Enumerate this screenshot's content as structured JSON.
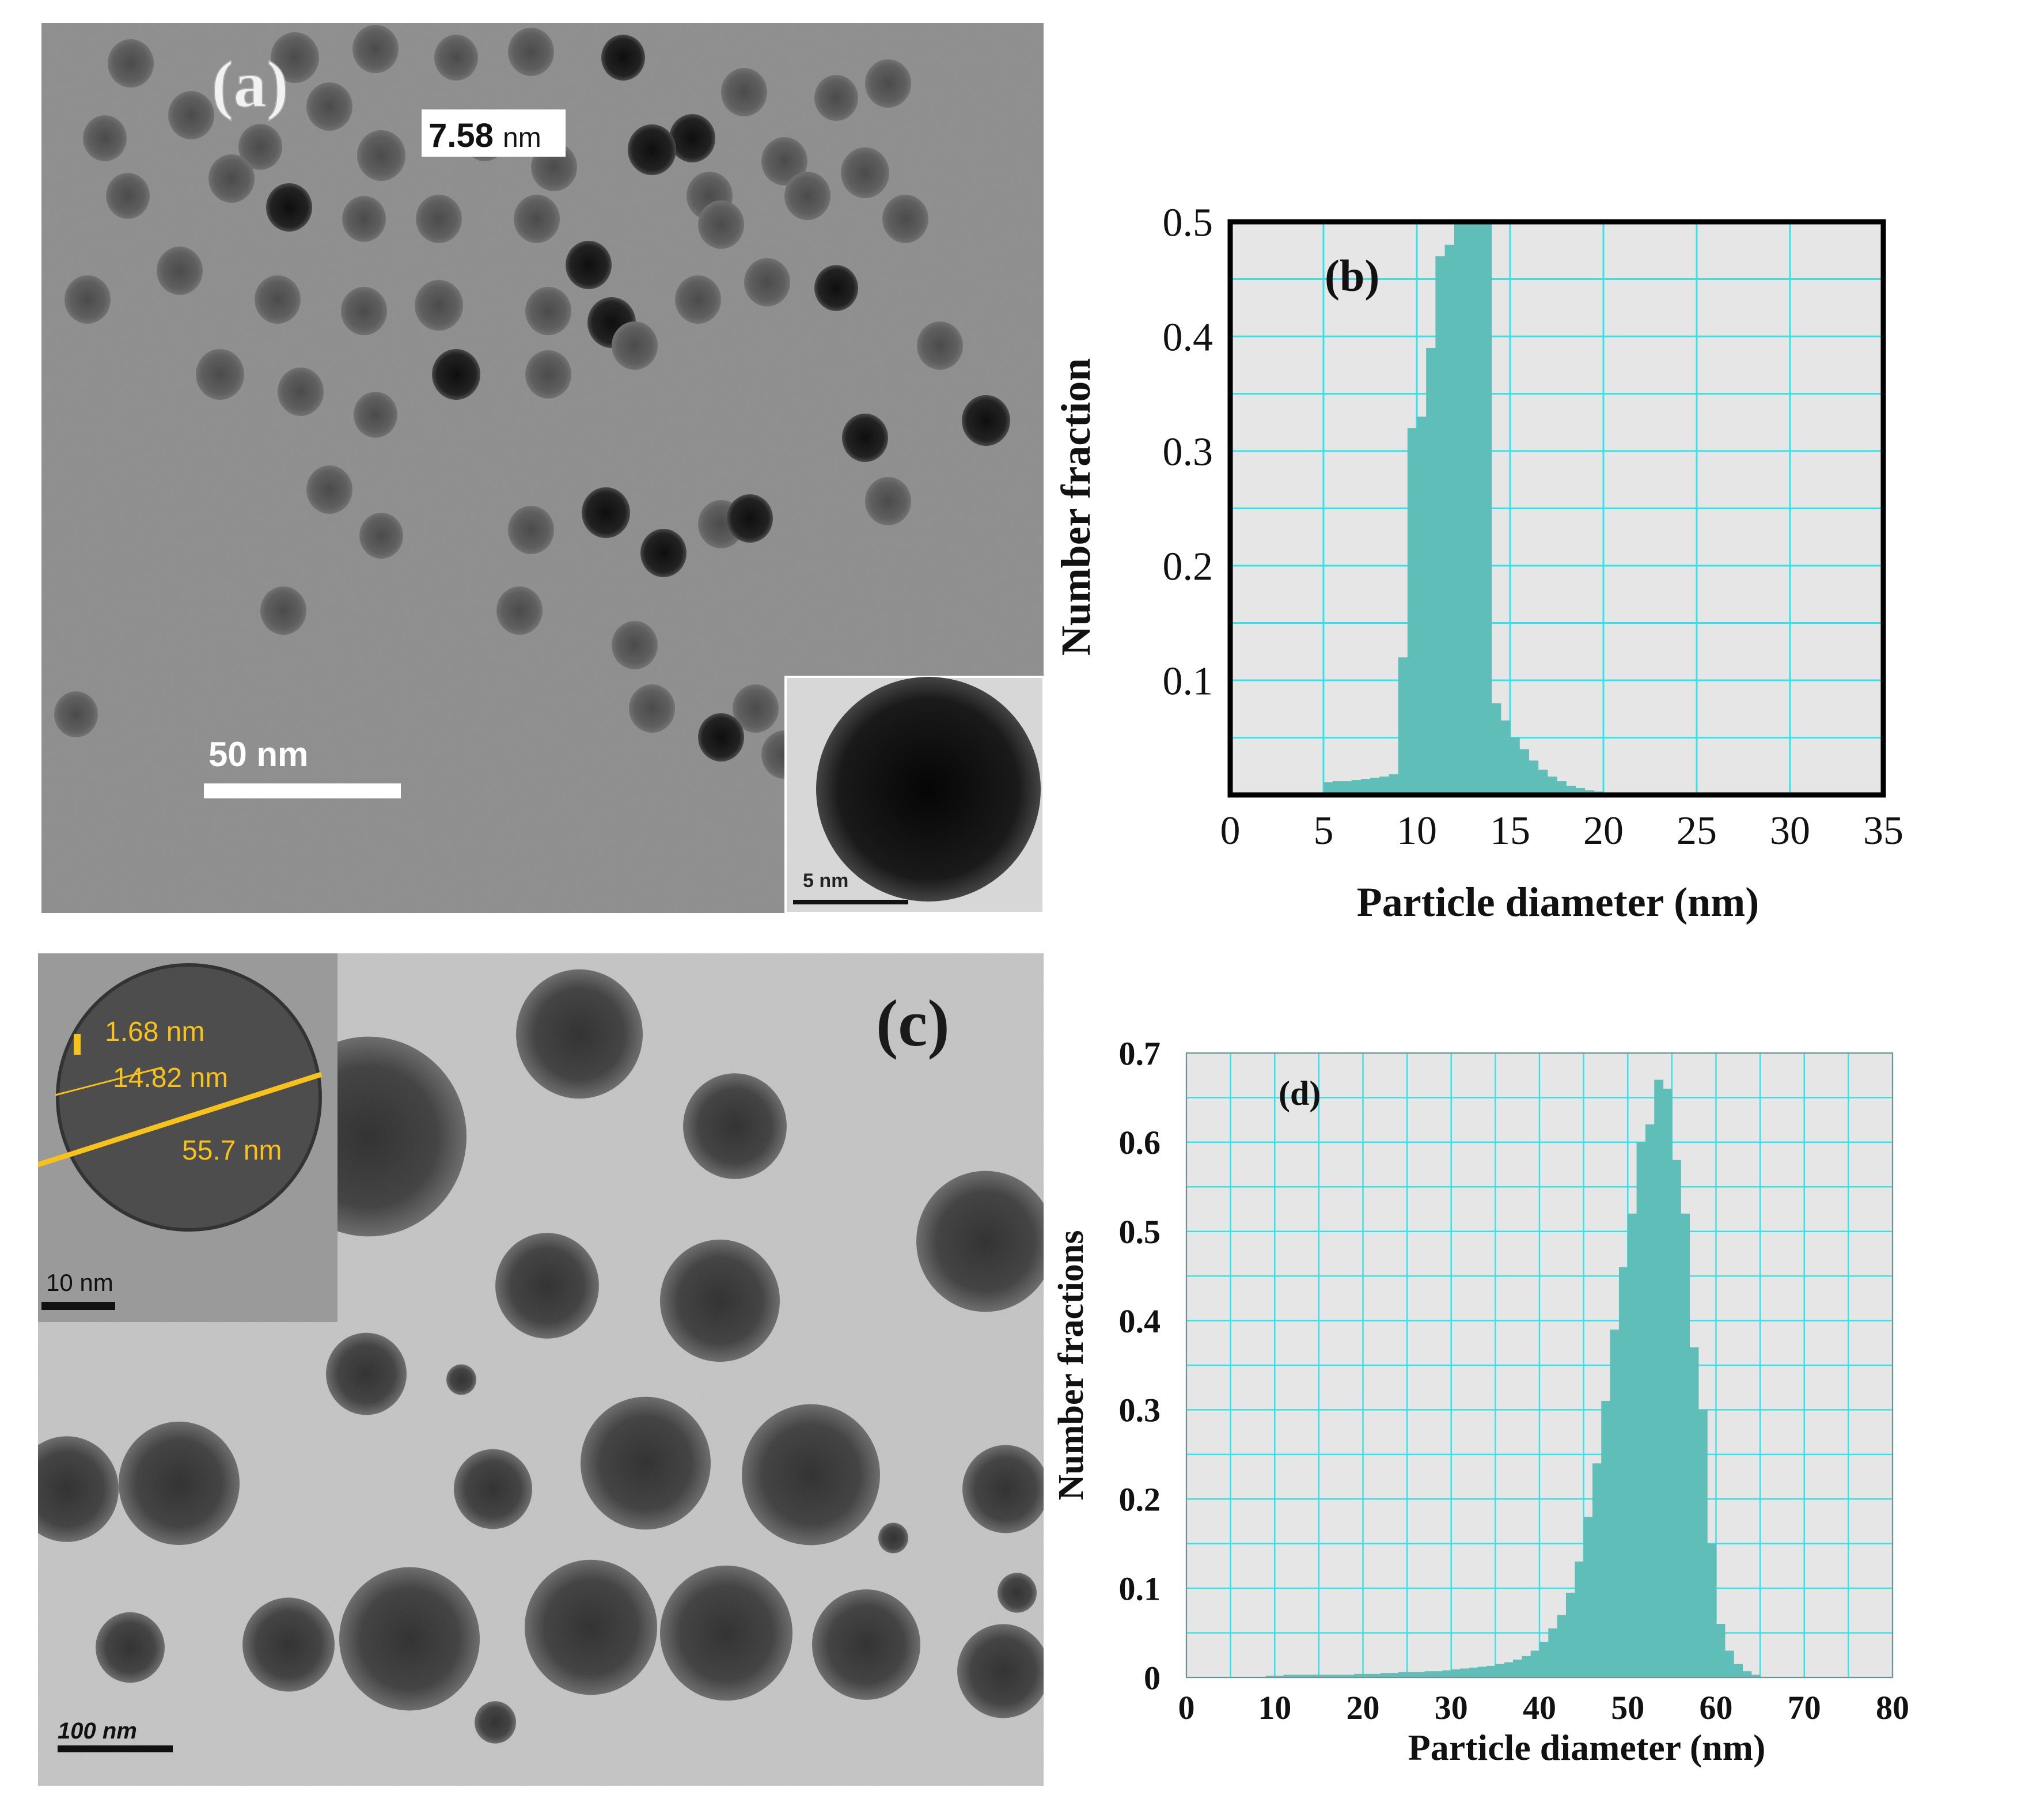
{
  "panel_a": {
    "label": "(a)",
    "measurement_value": "7.58",
    "measurement_unit": "nm",
    "scale_bar": "50 nm",
    "inset_scale_bar": "5 nm"
  },
  "panel_c": {
    "label": "(c)",
    "measurements": [
      "1.68 nm",
      "14.82 nm",
      "55.7 nm"
    ],
    "inset_scale_bar": "10 nm",
    "scale_bar": "100 nm"
  },
  "colors": {
    "bar_fill": "#5fbfb8",
    "plot_bg": "#e6e6e6",
    "grid": "#33e3e8",
    "tem_bg_a": "#8d8d8d",
    "tem_bg_c": "#c4c4c4",
    "measure_line": "#f7c21b"
  },
  "chart_data": [
    {
      "type": "bar",
      "panel_label": "(b)",
      "xlabel": "Particle diameter (nm)",
      "ylabel": "Number fraction",
      "xlim": [
        0,
        35
      ],
      "ylim": [
        0,
        0.5
      ],
      "x_ticks": [
        "0",
        "5",
        "10",
        "15",
        "20",
        "25",
        "30",
        "35"
      ],
      "y_ticks": [
        "0.1",
        "0.2",
        "0.3",
        "0.4",
        "0.5"
      ],
      "grid": true,
      "bin_width": 0.5,
      "x": [
        5.5,
        6,
        6.5,
        7,
        7.5,
        8,
        8.5,
        9,
        9.5,
        10,
        10.5,
        11,
        11.5,
        12,
        12.5,
        13,
        13.5,
        14,
        14.5,
        15,
        15.5,
        16,
        16.5,
        17,
        17.5,
        18,
        18.5,
        19,
        19.5,
        20,
        20.5
      ],
      "values": [
        0.011,
        0.012,
        0.012,
        0.013,
        0.014,
        0.015,
        0.016,
        0.018,
        0.12,
        0.32,
        0.33,
        0.39,
        0.47,
        0.48,
        0.5,
        0.5,
        0.5,
        0.5,
        0.08,
        0.065,
        0.05,
        0.04,
        0.03,
        0.022,
        0.016,
        0.012,
        0.008,
        0.006,
        0.004,
        0.003,
        0.002
      ]
    },
    {
      "type": "bar",
      "panel_label": "(d)",
      "xlabel": "Particle diameter (nm)",
      "ylabel": "Number fractions",
      "xlim": [
        0,
        80
      ],
      "ylim": [
        0,
        0.7
      ],
      "x_ticks": [
        "0",
        "10",
        "20",
        "30",
        "40",
        "50",
        "60",
        "70",
        "80"
      ],
      "y_ticks": [
        "0",
        "0.1",
        "0.2",
        "0.3",
        "0.4",
        "0.5",
        "0.6",
        "0.7"
      ],
      "grid": true,
      "bin_width": 1,
      "x": [
        10,
        11,
        12,
        13,
        14,
        15,
        16,
        17,
        18,
        19,
        20,
        21,
        22,
        23,
        24,
        25,
        26,
        27,
        28,
        29,
        30,
        31,
        32,
        33,
        34,
        35,
        36,
        37,
        38,
        39,
        40,
        41,
        42,
        43,
        44,
        45,
        46,
        47,
        48,
        49,
        50,
        51,
        52,
        53,
        54,
        55,
        56,
        57,
        58,
        59,
        60,
        61,
        62,
        63,
        64,
        65
      ],
      "values": [
        0.002,
        0.002,
        0.003,
        0.003,
        0.003,
        0.003,
        0.003,
        0.003,
        0.003,
        0.003,
        0.004,
        0.004,
        0.004,
        0.005,
        0.005,
        0.006,
        0.006,
        0.006,
        0.007,
        0.007,
        0.008,
        0.009,
        0.01,
        0.011,
        0.012,
        0.013,
        0.015,
        0.017,
        0.02,
        0.024,
        0.03,
        0.04,
        0.055,
        0.07,
        0.095,
        0.13,
        0.18,
        0.24,
        0.31,
        0.39,
        0.46,
        0.52,
        0.6,
        0.62,
        0.67,
        0.66,
        0.58,
        0.52,
        0.37,
        0.3,
        0.15,
        0.06,
        0.03,
        0.015,
        0.007,
        0.003
      ]
    }
  ]
}
